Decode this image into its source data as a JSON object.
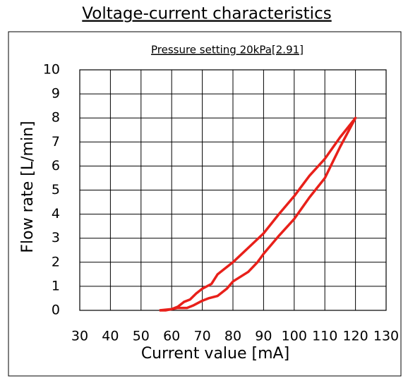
{
  "chart_data": {
    "type": "line",
    "title": "Voltage-current characteristics",
    "subtitle": "Pressure setting 20kPa[2.91]",
    "x_label": "Current value [mA]",
    "y_label": "Flow rate [L/min]",
    "x": [
      56,
      60,
      62,
      65,
      67,
      70,
      72,
      75,
      78,
      80,
      85,
      88,
      90,
      95,
      100,
      105,
      110,
      115,
      120,
      115,
      110,
      105,
      100,
      95,
      90,
      85,
      80,
      77,
      75,
      73,
      70,
      68,
      66,
      64,
      62,
      60,
      58,
      56
    ],
    "series": [
      {
        "name": "Flow rate",
        "color": "#e8201a",
        "values": [
          0,
          0.05,
          0.1,
          0.1,
          0.2,
          0.4,
          0.5,
          0.6,
          0.9,
          1.2,
          1.6,
          2.0,
          2.35,
          3.1,
          3.8,
          4.7,
          5.5,
          6.8,
          8.0,
          7.2,
          6.3,
          5.6,
          4.75,
          4.0,
          3.2,
          2.6,
          2.0,
          1.7,
          1.5,
          1.1,
          0.9,
          0.7,
          0.45,
          0.35,
          0.15,
          0.05,
          0,
          0
        ]
      }
    ],
    "xlim": [
      30,
      130
    ],
    "xticks": [
      30,
      40,
      50,
      60,
      70,
      80,
      90,
      100,
      110,
      120,
      130
    ],
    "ylim": [
      0,
      10
    ],
    "yticks": [
      0,
      1,
      2,
      3,
      4,
      5,
      6,
      7,
      8,
      9,
      10
    ],
    "grid": true
  }
}
